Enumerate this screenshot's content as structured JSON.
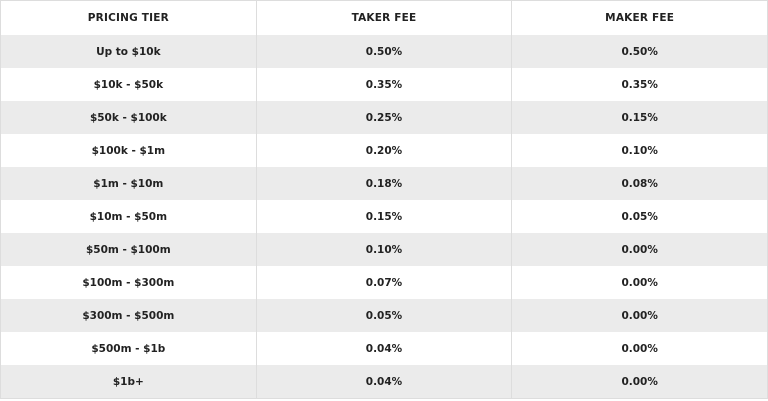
{
  "table": {
    "headers": [
      "PRICING TIER",
      "TAKER FEE",
      "MAKER FEE"
    ],
    "rows": [
      [
        "Up to $10k",
        "0.50%",
        "0.50%"
      ],
      [
        "$10k - $50k",
        "0.35%",
        "0.35%"
      ],
      [
        "$50k - $100k",
        "0.25%",
        "0.15%"
      ],
      [
        "$100k - $1m",
        "0.20%",
        "0.10%"
      ],
      [
        "$1m - $10m",
        "0.18%",
        "0.08%"
      ],
      [
        "$10m - $50m",
        "0.15%",
        "0.05%"
      ],
      [
        "$50m - $100m",
        "0.10%",
        "0.00%"
      ],
      [
        "$100m - $300m",
        "0.07%",
        "0.00%"
      ],
      [
        "$300m - $500m",
        "0.05%",
        "0.00%"
      ],
      [
        "$500m - $1b",
        "0.04%",
        "0.00%"
      ],
      [
        "$1b+",
        "0.04%",
        "0.00%"
      ]
    ]
  }
}
